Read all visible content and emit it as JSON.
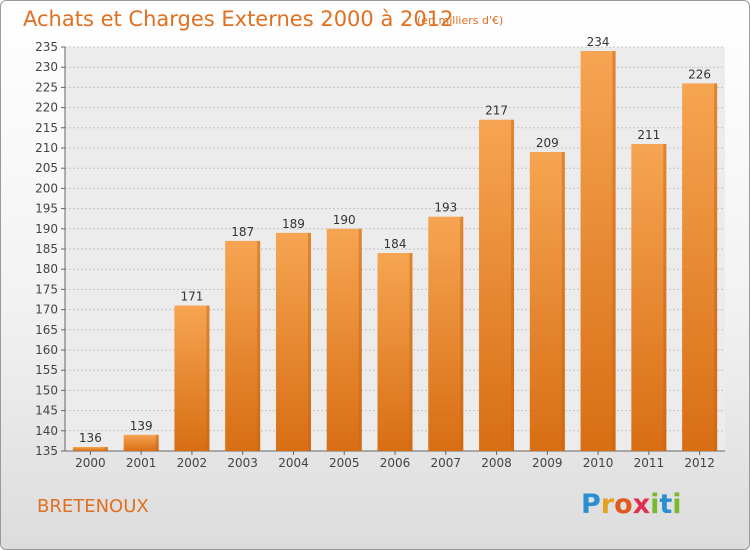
{
  "chart_data": {
    "type": "bar",
    "title": "Achats et Charges Externes 2000 à 2012",
    "subtitle": "(en milliers d'€)",
    "categories": [
      "2000",
      "2001",
      "2002",
      "2003",
      "2004",
      "2005",
      "2006",
      "2007",
      "2008",
      "2009",
      "2010",
      "2011",
      "2012"
    ],
    "values": [
      136,
      139,
      171,
      187,
      189,
      190,
      184,
      193,
      217,
      209,
      234,
      211,
      226
    ],
    "ylim": [
      135,
      235
    ],
    "yticks": [
      135,
      140,
      145,
      150,
      155,
      160,
      165,
      170,
      175,
      180,
      185,
      190,
      195,
      200,
      205,
      210,
      215,
      220,
      225,
      230,
      235
    ],
    "xlabel": "",
    "ylabel": "",
    "grid": true,
    "bar_color": "#f08a2a"
  },
  "footer": {
    "region": "BRETENOUX"
  },
  "logo": {
    "letters": [
      "P",
      "r",
      "o",
      "x",
      "i",
      "t",
      "i"
    ],
    "colors": [
      "#2a8fd0",
      "#e8a020",
      "#e05a20",
      "#e03050",
      "#7ab830",
      "#2a8fd0",
      "#7ab830"
    ]
  }
}
